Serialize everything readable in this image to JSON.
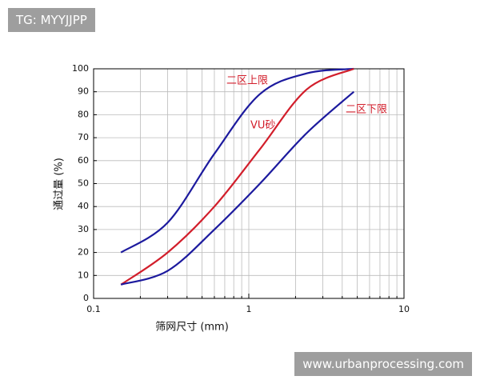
{
  "chart_data": {
    "type": "line",
    "x_label": "筛网尺寸 (mm)",
    "y_label": "通过量 (%)",
    "x_log": true,
    "grid": true,
    "xlim": [
      0.1,
      10
    ],
    "xticks": [
      0.1,
      1,
      10
    ],
    "x_minor_ticks": [
      0.2,
      0.3,
      0.4,
      0.5,
      0.6,
      0.7,
      0.8,
      0.9,
      2,
      3,
      4,
      5,
      6,
      7,
      8,
      9
    ],
    "ylim": [
      0,
      100
    ],
    "yticks": [
      0,
      10,
      20,
      30,
      40,
      50,
      60,
      70,
      80,
      90,
      100
    ],
    "series": [
      {
        "name": "二区上限",
        "color": "#1c1a9e",
        "x": [
          0.15,
          0.3,
          0.6,
          1.18,
          2.36,
          4.75
        ],
        "values": [
          20,
          33,
          63,
          89,
          98,
          100
        ]
      },
      {
        "name": "VU砂",
        "color": "#d21e2b",
        "x": [
          0.15,
          0.3,
          0.6,
          1.18,
          2.36,
          4.75
        ],
        "values": [
          6,
          20,
          40,
          65,
          91,
          100
        ]
      },
      {
        "name": "二区下限",
        "color": "#1c1a9e",
        "x": [
          0.15,
          0.3,
          0.6,
          1.18,
          2.36,
          4.75
        ],
        "values": [
          6,
          12,
          30,
          50,
          72,
          90
        ]
      }
    ]
  },
  "watermarks": {
    "top": "TG: MYYJJPP",
    "bottom": "www.urbanprocessing.com"
  }
}
